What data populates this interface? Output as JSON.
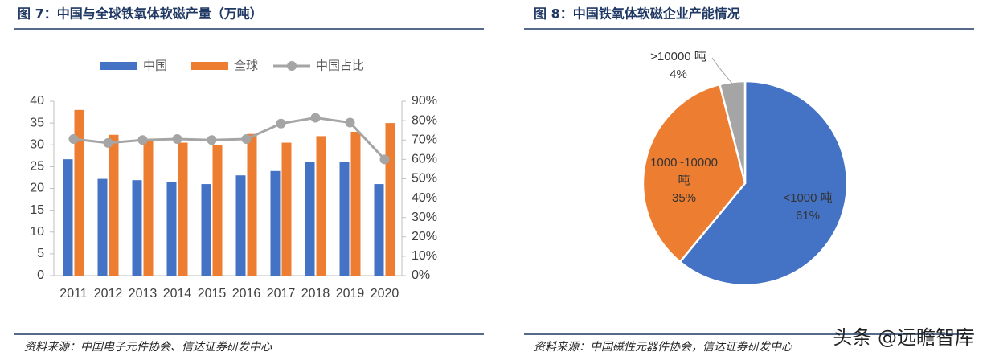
{
  "chart_data": [
    {
      "type": "bar",
      "title": "图 7：中国与全球铁氧体软磁产量（万吨）",
      "categories": [
        "2011",
        "2012",
        "2013",
        "2014",
        "2015",
        "2016",
        "2017",
        "2018",
        "2019",
        "2020"
      ],
      "series": [
        {
          "name": "中国",
          "color": "#4472c4",
          "values": [
            26.7,
            22.2,
            21.9,
            21.5,
            21.0,
            23.0,
            24.0,
            26.0,
            26.0,
            21.0
          ]
        },
        {
          "name": "全球",
          "color": "#ed7d31",
          "values": [
            38.0,
            32.3,
            31.0,
            30.5,
            30.0,
            32.5,
            30.5,
            32.0,
            33.0,
            35.0
          ]
        },
        {
          "name": "中国占比",
          "color": "#a5a5a5",
          "type": "line",
          "axis": "y2",
          "values": [
            70.5,
            68.5,
            70.0,
            70.5,
            70.0,
            70.5,
            78.5,
            81.5,
            79.0,
            60.0
          ]
        }
      ],
      "ylim": [
        0,
        40
      ],
      "yticks": [
        0,
        5,
        10,
        15,
        20,
        25,
        30,
        35,
        40
      ],
      "y2lim": [
        0,
        90
      ],
      "y2ticks": [
        {
          "value": 0,
          "label": "0%"
        },
        {
          "value": 10,
          "label": "10%"
        },
        {
          "value": 20,
          "label": "20%"
        },
        {
          "value": 30,
          "label": "30%"
        },
        {
          "value": 40,
          "label": "40%"
        },
        {
          "value": 50,
          "label": "50%"
        },
        {
          "value": 60,
          "label": "60%"
        },
        {
          "value": 70,
          "label": "70%"
        },
        {
          "value": 80,
          "label": "80%"
        },
        {
          "value": 90,
          "label": "90%"
        }
      ],
      "legend": "top",
      "source": "资料来源：中国电子元件协会、信达证券研发中心"
    },
    {
      "type": "pie",
      "title": "图 8：中国铁氧体软磁企业产能情况",
      "labels": [
        "<1000 吨",
        "1000~10000 吨",
        ">10000 吨"
      ],
      "values": [
        61,
        35,
        4
      ],
      "value_labels": [
        "61%",
        "35%",
        "4%"
      ],
      "colors": [
        "#4472c4",
        "#ed7d31",
        "#a5a5a5"
      ],
      "source": "资料来源：中国磁性元器件协会，信达证券研发中心"
    }
  ],
  "watermark": "头条 @远瞻智库"
}
